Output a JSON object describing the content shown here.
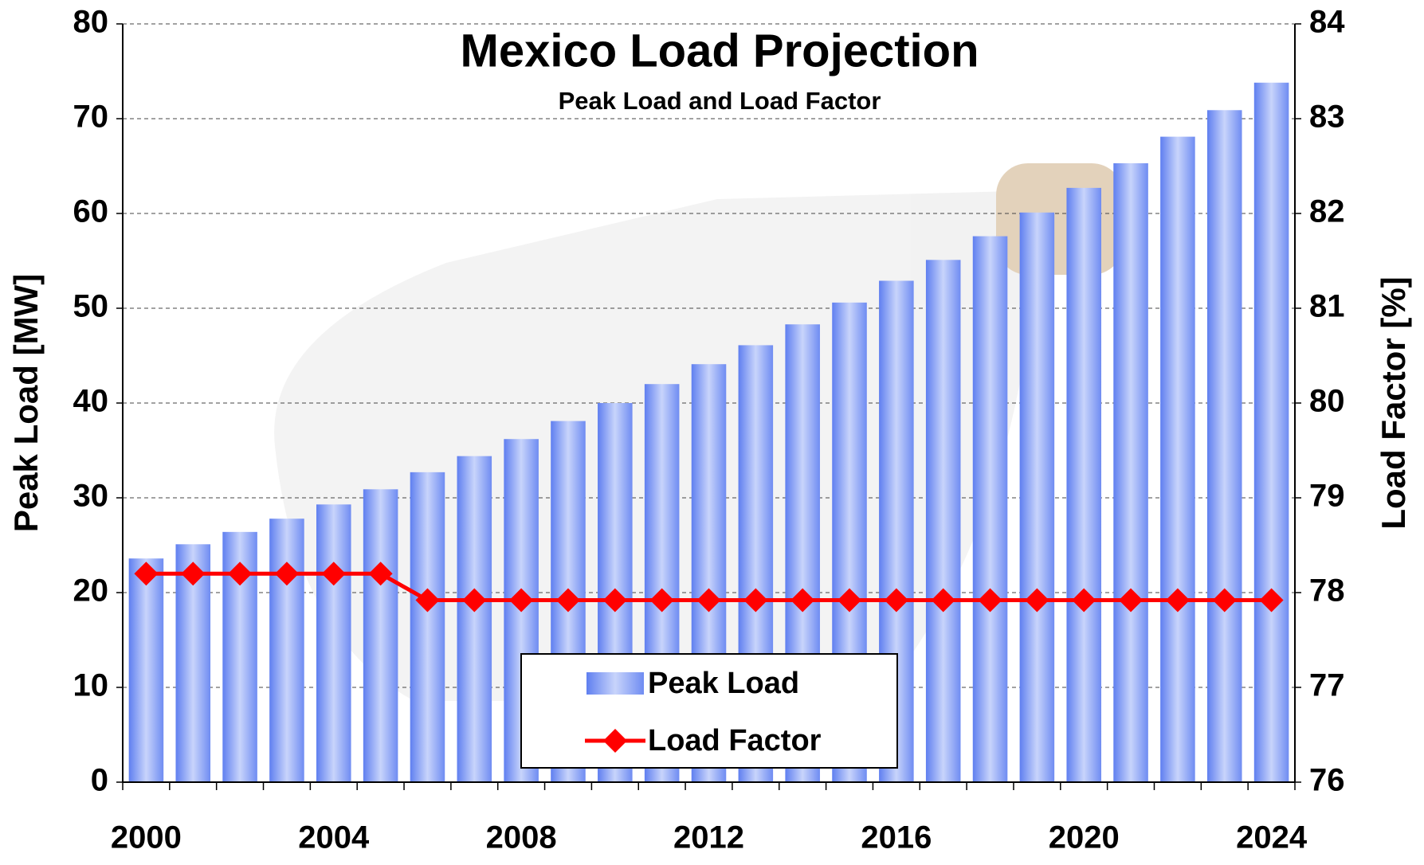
{
  "chart_data": {
    "type": "bar_line",
    "title": "Mexico Load Projection",
    "subtitle": "Peak Load and Load Factor",
    "ylabel": "Peak Load [MW]",
    "y2label": "Load Factor [%]",
    "categories": [
      "2000",
      null,
      null,
      null,
      "2004",
      null,
      null,
      null,
      "2008",
      null,
      null,
      null,
      "2012",
      null,
      null,
      null,
      "2016",
      null,
      null,
      null,
      "2020",
      null,
      null,
      null,
      "2024"
    ],
    "series": [
      {
        "name": "Peak Load",
        "type": "bar",
        "color": "#6f8cf2",
        "values": [
          23.6,
          25.1,
          26.4,
          27.8,
          29.3,
          30.9,
          32.7,
          34.4,
          36.2,
          38.1,
          40.0,
          42.0,
          44.1,
          46.1,
          48.3,
          50.6,
          52.9,
          55.1,
          57.6,
          60.1,
          62.7,
          65.3,
          68.1,
          70.9,
          73.8
        ]
      },
      {
        "name": "Load Factor",
        "type": "line",
        "axis": "y2",
        "color": "#ff0000",
        "values": [
          78.2,
          78.2,
          78.2,
          78.2,
          78.2,
          78.2,
          77.92,
          77.92,
          77.92,
          77.92,
          77.92,
          77.92,
          77.92,
          77.92,
          77.92,
          77.92,
          77.92,
          77.92,
          77.92,
          77.92,
          77.92,
          77.92,
          77.92,
          77.92,
          77.92
        ]
      }
    ],
    "ylim": [
      0,
      80
    ],
    "yticks": [
      0,
      10,
      20,
      30,
      40,
      50,
      60,
      70,
      80
    ],
    "y2lim": [
      76,
      84
    ],
    "y2ticks": [
      76,
      77,
      78,
      79,
      80,
      81,
      82,
      83,
      84
    ],
    "grid": true,
    "legend": "bottom"
  }
}
